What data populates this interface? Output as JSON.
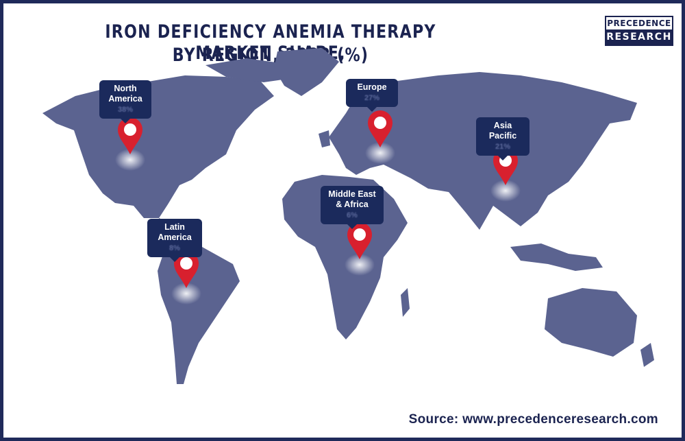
{
  "header": {
    "title": [
      "IRON DEFICIENCY ANEMIA THERAPY MARKET SHARE,",
      "BY REGION, 2022 (%)"
    ],
    "logo": [
      "PRECEDENCE",
      "RESEARCH"
    ]
  },
  "regions": [
    {
      "name": "North America",
      "share": "38%"
    },
    {
      "name": "Europe",
      "share": "27%"
    },
    {
      "name": "Asia Pacific",
      "share": "21%"
    },
    {
      "name": "Middle East & Africa",
      "share": "6%"
    },
    {
      "name": "Latin America",
      "share": "8%"
    }
  ],
  "footer": {
    "source": "Source: www.precedenceresearch.com"
  }
}
